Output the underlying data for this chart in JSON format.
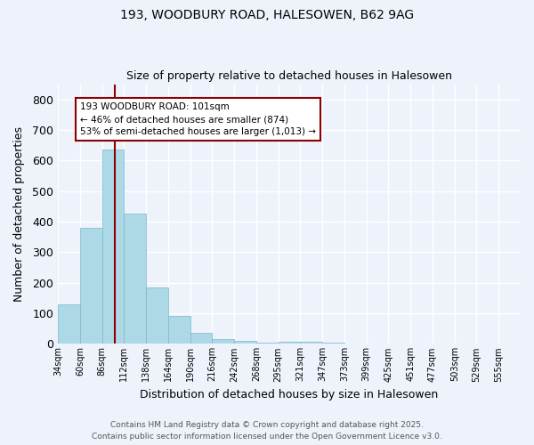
{
  "title1": "193, WOODBURY ROAD, HALESOWEN, B62 9AG",
  "title2": "Size of property relative to detached houses in Halesowen",
  "xlabel": "Distribution of detached houses by size in Halesowen",
  "ylabel": "Number of detached properties",
  "bin_labels": [
    "34sqm",
    "60sqm",
    "86sqm",
    "112sqm",
    "138sqm",
    "164sqm",
    "190sqm",
    "216sqm",
    "242sqm",
    "268sqm",
    "295sqm",
    "321sqm",
    "347sqm",
    "373sqm",
    "399sqm",
    "425sqm",
    "451sqm",
    "477sqm",
    "503sqm",
    "529sqm",
    "555sqm"
  ],
  "bar_heights": [
    130,
    380,
    635,
    425,
    185,
    90,
    35,
    17,
    10,
    5,
    7,
    7,
    3,
    2,
    1,
    1,
    1,
    0,
    0,
    0,
    0
  ],
  "bar_color": "#add8e6",
  "bar_edge_color": "#7ab8cc",
  "vline_x": 101,
  "vline_color": "#8b0000",
  "annotation_line1": "193 WOODBURY ROAD: 101sqm",
  "annotation_line2": "← 46% of detached houses are smaller (874)",
  "annotation_line3": "53% of semi-detached houses are larger (1,013) →",
  "annotation_box_color": "white",
  "annotation_box_edgecolor": "#8b0000",
  "ylim": [
    0,
    850
  ],
  "yticks": [
    0,
    100,
    200,
    300,
    400,
    500,
    600,
    700,
    800
  ],
  "footer1": "Contains HM Land Registry data © Crown copyright and database right 2025.",
  "footer2": "Contains public sector information licensed under the Open Government Licence v3.0.",
  "bg_color": "#eef2fb",
  "grid_color": "#ffffff"
}
